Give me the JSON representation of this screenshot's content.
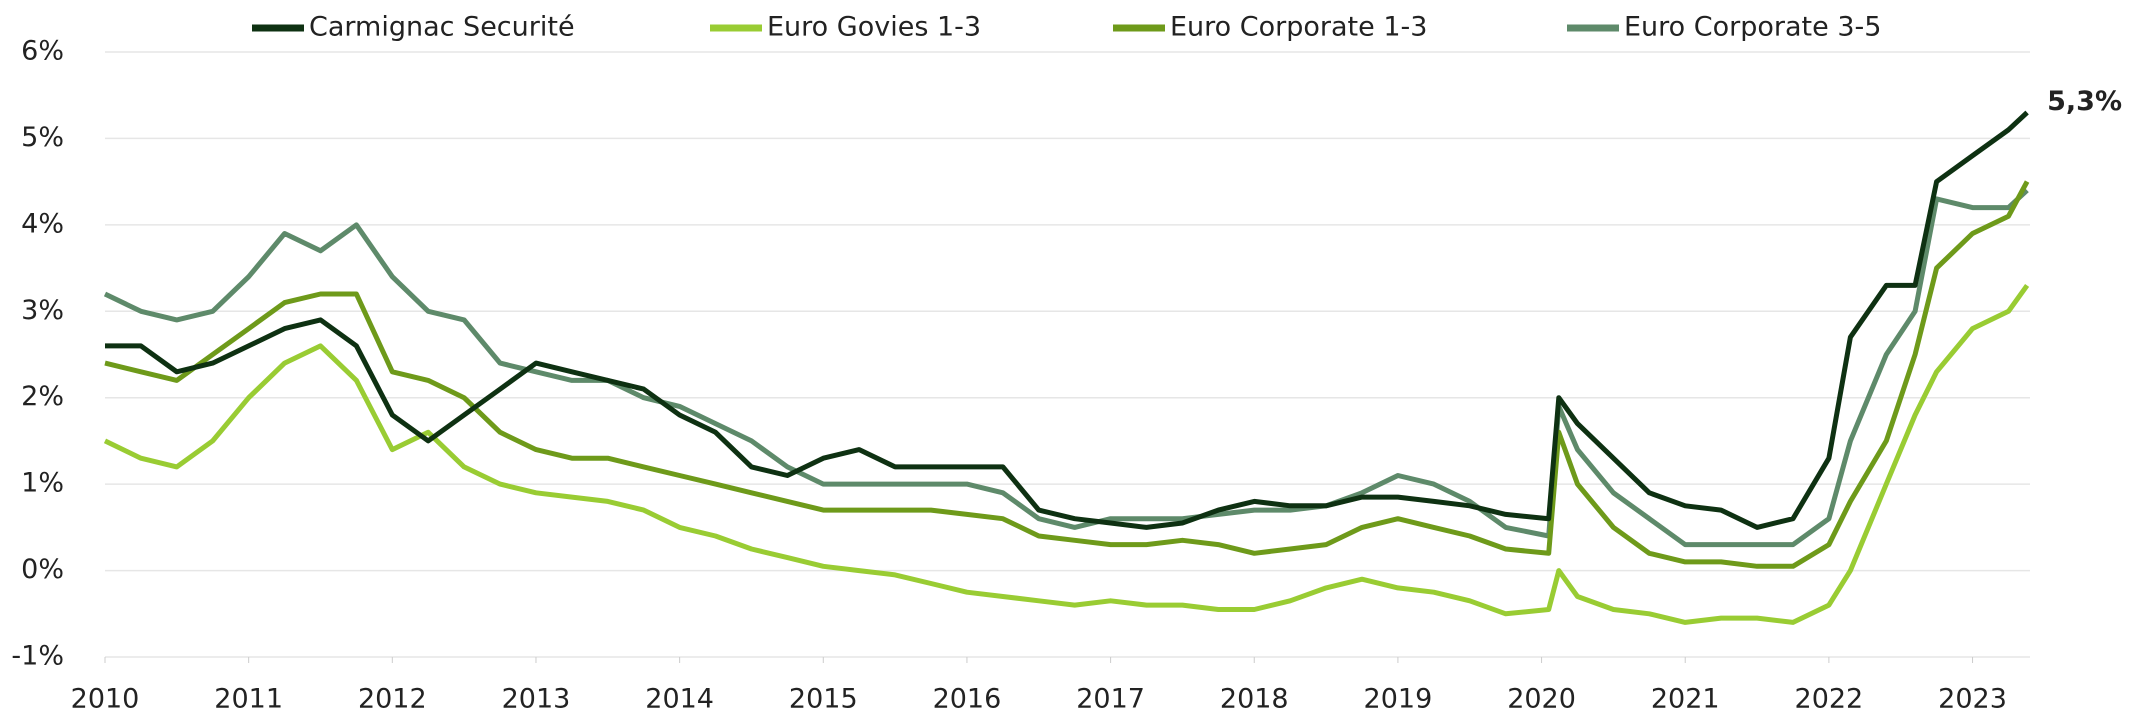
{
  "chart_data": {
    "type": "line",
    "x": [
      2010,
      2010.25,
      2010.5,
      2010.75,
      2011,
      2011.25,
      2011.5,
      2011.75,
      2012,
      2012.25,
      2012.5,
      2012.75,
      2013,
      2013.25,
      2013.5,
      2013.75,
      2014,
      2014.25,
      2014.5,
      2014.75,
      2015,
      2015.25,
      2015.5,
      2015.75,
      2016,
      2016.25,
      2016.5,
      2016.75,
      2017,
      2017.25,
      2017.5,
      2017.75,
      2018,
      2018.25,
      2018.5,
      2018.75,
      2019,
      2019.25,
      2019.5,
      2019.75,
      2020.05,
      2020.12,
      2020.25,
      2020.5,
      2020.75,
      2021,
      2021.25,
      2021.5,
      2021.75,
      2022,
      2022.15,
      2022.4,
      2022.6,
      2022.75,
      2023,
      2023.25,
      2023.38
    ],
    "series": [
      {
        "name": "Carmignac Securité",
        "color": "#0e3112",
        "values": [
          2.6,
          2.6,
          2.3,
          2.4,
          2.6,
          2.8,
          2.9,
          2.6,
          1.8,
          1.5,
          1.8,
          2.1,
          2.4,
          2.3,
          2.2,
          2.1,
          1.8,
          1.6,
          1.2,
          1.1,
          1.3,
          1.4,
          1.2,
          1.2,
          1.2,
          1.2,
          0.7,
          0.6,
          0.55,
          0.5,
          0.55,
          0.7,
          0.8,
          0.75,
          0.75,
          0.85,
          0.85,
          0.8,
          0.75,
          0.65,
          0.6,
          2.0,
          1.7,
          1.3,
          0.9,
          0.75,
          0.7,
          0.5,
          0.6,
          1.3,
          2.7,
          3.3,
          3.3,
          4.5,
          4.8,
          5.1,
          5.3
        ]
      },
      {
        "name": "Euro Govies 1-3",
        "color": "#99cc33",
        "values": [
          1.5,
          1.3,
          1.2,
          1.5,
          2.0,
          2.4,
          2.6,
          2.2,
          1.4,
          1.6,
          1.2,
          1.0,
          0.9,
          0.85,
          0.8,
          0.7,
          0.5,
          0.4,
          0.25,
          0.15,
          0.05,
          0.0,
          -0.05,
          -0.15,
          -0.25,
          -0.3,
          -0.35,
          -0.4,
          -0.35,
          -0.4,
          -0.4,
          -0.45,
          -0.45,
          -0.35,
          -0.2,
          -0.1,
          -0.2,
          -0.25,
          -0.35,
          -0.5,
          -0.45,
          0.0,
          -0.3,
          -0.45,
          -0.5,
          -0.6,
          -0.55,
          -0.55,
          -0.6,
          -0.4,
          0.0,
          1.0,
          1.8,
          2.3,
          2.8,
          3.0,
          3.3
        ]
      },
      {
        "name": "Euro Corporate 1-3",
        "color": "#6e9a1a",
        "values": [
          2.4,
          2.3,
          2.2,
          2.5,
          2.8,
          3.1,
          3.2,
          3.2,
          2.3,
          2.2,
          2.0,
          1.6,
          1.4,
          1.3,
          1.3,
          1.2,
          1.1,
          1.0,
          0.9,
          0.8,
          0.7,
          0.7,
          0.7,
          0.7,
          0.65,
          0.6,
          0.4,
          0.35,
          0.3,
          0.3,
          0.35,
          0.3,
          0.2,
          0.25,
          0.3,
          0.5,
          0.6,
          0.5,
          0.4,
          0.25,
          0.2,
          1.6,
          1.0,
          0.5,
          0.2,
          0.1,
          0.1,
          0.05,
          0.05,
          0.3,
          0.8,
          1.5,
          2.5,
          3.5,
          3.9,
          4.1,
          4.5
        ]
      },
      {
        "name": "Euro Corporate 3-5",
        "color": "#5e8a6a",
        "values": [
          3.2,
          3.0,
          2.9,
          3.0,
          3.4,
          3.9,
          3.7,
          4.0,
          3.4,
          3.0,
          2.9,
          2.4,
          2.3,
          2.2,
          2.2,
          2.0,
          1.9,
          1.7,
          1.5,
          1.2,
          1.0,
          1.0,
          1.0,
          1.0,
          1.0,
          0.9,
          0.6,
          0.5,
          0.6,
          0.6,
          0.6,
          0.65,
          0.7,
          0.7,
          0.75,
          0.9,
          1.1,
          1.0,
          0.8,
          0.5,
          0.4,
          1.9,
          1.4,
          0.9,
          0.6,
          0.3,
          0.3,
          0.3,
          0.3,
          0.6,
          1.5,
          2.5,
          3.0,
          4.3,
          4.2,
          4.2,
          4.4
        ]
      }
    ],
    "xlim": [
      2010,
      2023.4
    ],
    "xticks": [
      2010,
      2011,
      2012,
      2013,
      2014,
      2015,
      2016,
      2017,
      2018,
      2019,
      2020,
      2021,
      2022,
      2023
    ],
    "ylim": [
      -1,
      6
    ],
    "yticks": [
      {
        "value": -1,
        "label": "-1%"
      },
      {
        "value": 0,
        "label": "0%"
      },
      {
        "value": 1,
        "label": "1%"
      },
      {
        "value": 2,
        "label": "2%"
      },
      {
        "value": 3,
        "label": "3%"
      },
      {
        "value": 4,
        "label": "4%"
      },
      {
        "value": 5,
        "label": "5%"
      },
      {
        "value": 6,
        "label": "6%"
      }
    ],
    "grid": true,
    "legend": "top",
    "annotations": [
      {
        "text": "5,3%",
        "x": 2023.38,
        "y": 5.3
      }
    ]
  }
}
